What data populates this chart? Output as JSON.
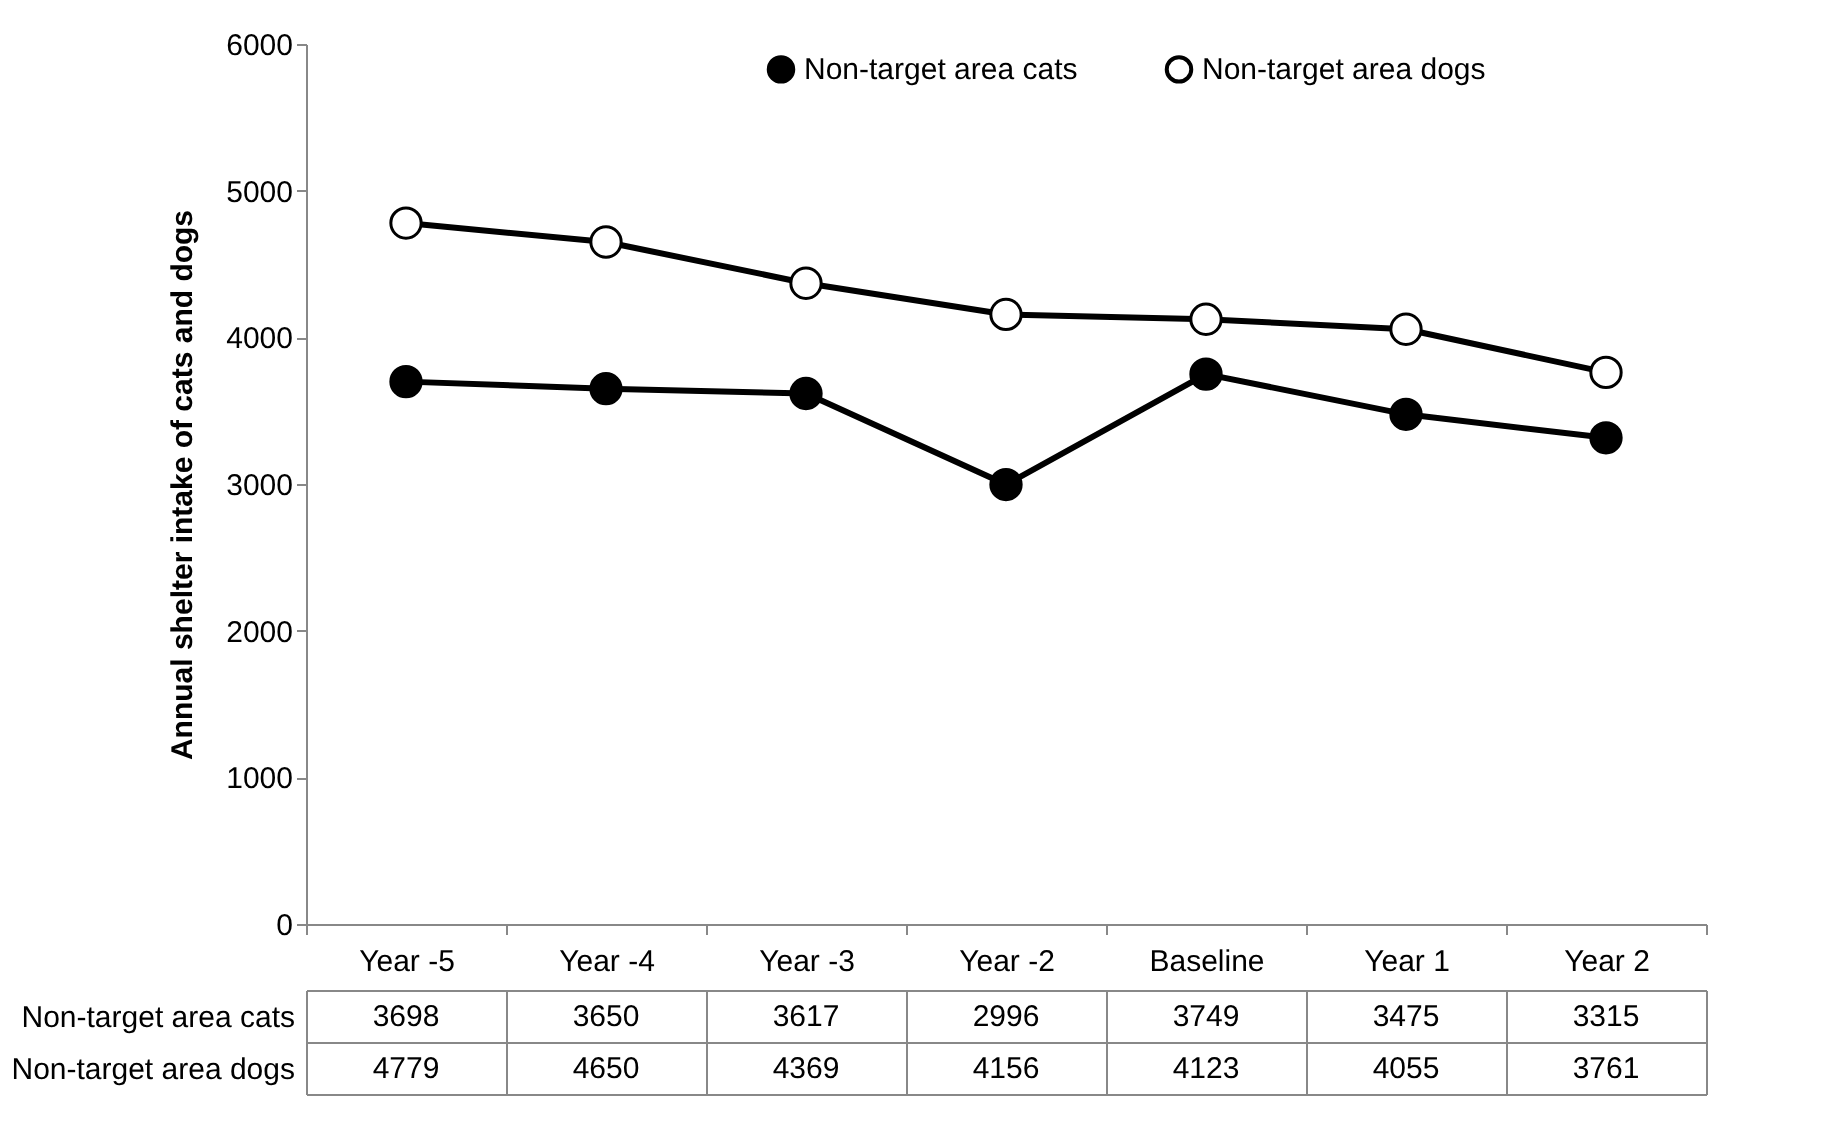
{
  "chart_data": {
    "type": "line",
    "ylabel": "Annual shelter intake of cats and dogs",
    "categories": [
      "Year -5",
      "Year -4",
      "Year -3",
      "Year -2",
      "Baseline",
      "Year 1",
      "Year 2"
    ],
    "series": [
      {
        "name": "Non-target area cats",
        "color": "#000000",
        "values": [
          3698,
          3650,
          3617,
          2996,
          3749,
          3475,
          3315
        ]
      },
      {
        "name": "Non-target area dogs",
        "color": "#000000",
        "values": [
          4779,
          4650,
          4369,
          4156,
          4123,
          4055,
          3761
        ]
      }
    ],
    "ylim": [
      0,
      6000
    ],
    "yticks": [
      0,
      1000,
      2000,
      3000,
      4000,
      5000,
      6000
    ],
    "grid": false,
    "legend": "top",
    "marker": "circle",
    "line_style": "solid",
    "data_labels": true
  }
}
